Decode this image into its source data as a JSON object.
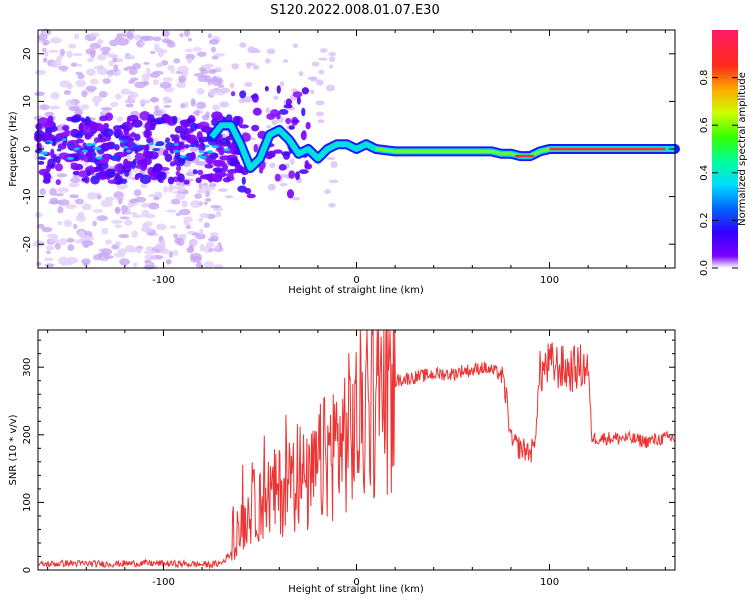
{
  "title": "S120.2022.008.01.07.E30",
  "chart_data": [
    {
      "type": "heatmap",
      "xlabel": "Height of straight line (km)",
      "ylabel": "Frequency (Hz)",
      "xlim": [
        -165,
        165
      ],
      "ylim": [
        -25,
        25
      ],
      "xticks": [
        -100,
        0,
        100
      ],
      "yticks": [
        -20,
        -10,
        0,
        10,
        20
      ],
      "colorbar": {
        "label": "Normalized spectral amplitude",
        "ticks": [
          0.0,
          0.2,
          0.4,
          0.6,
          0.8
        ],
        "range": [
          0,
          1
        ],
        "colormap": "rainbow (purple-blue-cyan-green-yellow-red-magenta)"
      },
      "signal_track": {
        "x": [
          -160,
          -140,
          -120,
          -100,
          -80,
          -70,
          -65,
          -60,
          -55,
          -50,
          -45,
          -40,
          -35,
          -30,
          -25,
          -20,
          -15,
          -10,
          -5,
          0,
          5,
          10,
          20,
          40,
          60,
          70,
          75,
          80,
          85,
          90,
          95,
          100,
          120,
          140,
          160,
          165
        ],
        "y": [
          0,
          1,
          0,
          -1,
          0,
          5,
          5,
          1,
          -4,
          -2,
          3,
          4,
          2,
          -1,
          0,
          -2,
          0,
          1,
          1,
          0,
          1,
          0,
          -0.5,
          -0.5,
          -0.5,
          -0.5,
          -1,
          -1,
          -1.5,
          -1.5,
          -0.5,
          0,
          0,
          0,
          0,
          0
        ]
      }
    },
    {
      "type": "line",
      "xlabel": "Height of straight line (km)",
      "ylabel": "SNR (10 * v/v)",
      "xlim": [
        -165,
        165
      ],
      "ylim": [
        0,
        355
      ],
      "xticks": [
        -100,
        0,
        100
      ],
      "yticks": [
        0,
        100,
        200,
        300
      ],
      "color": "#ee3333",
      "series": [
        {
          "x": [
            -165,
            -150,
            -130,
            -110,
            -90,
            -75,
            -70,
            -65,
            -60,
            -55,
            -50,
            -45,
            -40,
            -35,
            -30,
            -25,
            -20,
            -15,
            -10,
            -5,
            0,
            5,
            10,
            15,
            20,
            30,
            40,
            50,
            55,
            60,
            65,
            70,
            75,
            78,
            80,
            85,
            90,
            92,
            95,
            98,
            100,
            105,
            110,
            115,
            120,
            122,
            125,
            130,
            140,
            150,
            160,
            165
          ],
          "values": [
            8,
            10,
            9,
            10,
            9,
            8,
            10,
            25,
            60,
            90,
            100,
            110,
            115,
            130,
            145,
            120,
            150,
            170,
            185,
            200,
            215,
            240,
            255,
            270,
            280,
            285,
            290,
            290,
            295,
            295,
            300,
            295,
            290,
            250,
            190,
            180,
            175,
            180,
            290,
            300,
            305,
            300,
            295,
            300,
            300,
            195,
            195,
            195,
            195,
            190,
            195,
            195
          ]
        }
      ]
    }
  ]
}
